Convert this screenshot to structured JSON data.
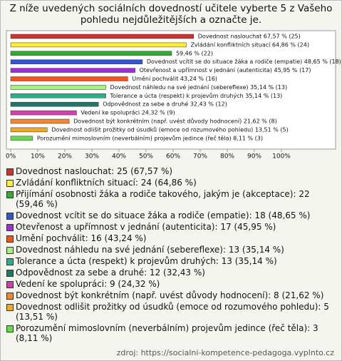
{
  "chart_data": {
    "type": "bar",
    "title": "Z níže uvedených sociálních dovedností učitele vyberte 5 z Vašeho pohledu nejdůležitějších a označte je.",
    "values": [
      67.57,
      64.86,
      59.46,
      48.65,
      45.95,
      43.24,
      35.14,
      35.14,
      32.43,
      24.32,
      21.62,
      13.51,
      8.11
    ],
    "value_labels": [
      "Dovednost naslouchat 67,57 % (25)",
      "Zvládání konfliktních situací 64,86 % (24)",
      "59,46 % (22)",
      "Dovednost vcítit se do situace žáka a rodiče (empatie) 48,65 % (18)",
      "Otevřenost a upřímnost v jednání (autenticita) 45,95 % (17)",
      "Umění pochválit 43,24 % (16)",
      "Dovednost náhledu na své jednání (sebereflexe) 35,14 % (13)",
      "Tolerance a úcta (respekt) k projevům druhých 35,14 % (13)",
      "Odpovědnost za sebe a druhé 32,43 % (12)",
      "Vedení ke spolupráci 24,32 % (9)",
      "Dovednost být konkrétním (např. uvést důvody hodnocení) 21,62 % (8)",
      "Dovednost odlišit prožitky od úsudků (emoce od rozumového pohledu) 13,51 % (5)",
      "Porozumění mimoslovním (neverbálním) projevům jedince (řeč těla) 8,11 % (3)"
    ],
    "colors": [
      "#cc3333",
      "#ffee33",
      "#33aa33",
      "#3355cc",
      "#9933cc",
      "#ee5522",
      "#aaee88",
      "#33aa88",
      "#227766",
      "#cc44aa",
      "#ee8833",
      "#eeaa22",
      "#66dd44"
    ],
    "legend": [
      "Dovednost naslouchat: 25 (67,57 %)",
      "Zvládání konfliktních situací: 24 (64,86 %)",
      "Přijímání osobnosti žáka a rodiče takového, jakým je (akceptace): 22 (59,46 %)",
      "Dovednost vcítit se do situace žáka a rodiče (empatie): 18 (48,65 %)",
      "Otevřenost a upřímnost v jednání (autenticita): 17 (45,95 %)",
      "Umění pochválit: 16 (43,24 %)",
      "Dovednost náhledu na své jednání (sebereflexe): 13 (35,14 %)",
      "Tolerance a úcta (respekt) k projevům druhých: 13 (35,14 %)",
      "Odpovědnost za sebe a druhé: 12 (32,43 %)",
      "Vedení ke spolupráci: 9 (24,32 %)",
      "Dovednost být konkrétním (např. uvést důvody hodnocení): 8 (21,62 %)",
      "Dovednost odlišit prožitky od úsudků (emoce od rozumového pohledu): 5 (13,51 %)",
      "Porozumění mimoslovním (neverbálním) projevům jedince (řeč těla): 3 (8,11 %)"
    ],
    "xlim": [
      0,
      100
    ],
    "xticks": [
      {
        "value": 0,
        "label": "0%"
      },
      {
        "value": 10,
        "label": "10%"
      },
      {
        "value": 20,
        "label": "20%"
      },
      {
        "value": 30,
        "label": "30%"
      },
      {
        "value": 40,
        "label": "40%"
      },
      {
        "value": 50,
        "label": "50%"
      },
      {
        "value": 60,
        "label": "60%"
      },
      {
        "value": 70,
        "label": "70%"
      },
      {
        "value": 80,
        "label": "80%"
      },
      {
        "value": 90,
        "label": "90%"
      },
      {
        "value": 100,
        "label": "100%"
      }
    ],
    "source": "zdroj: https://socialni-kompetence-pedagoga.vyplnto.cz"
  }
}
